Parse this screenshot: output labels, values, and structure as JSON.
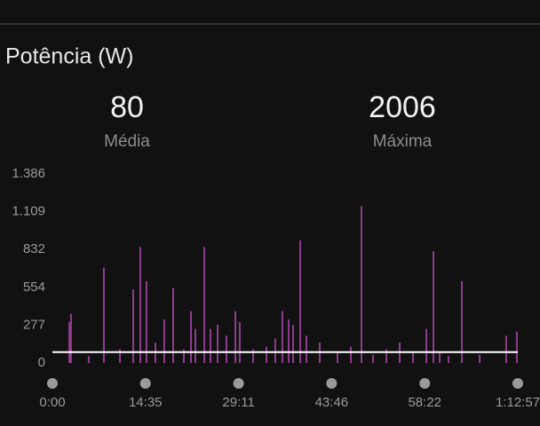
{
  "header": {
    "title": "Potência (W)"
  },
  "stats": [
    {
      "value": 80,
      "label": "Média"
    },
    {
      "value": 2006,
      "label": "Máxima"
    }
  ],
  "chart_data": {
    "type": "bar",
    "color": "#8e3c8e",
    "line_color": "#ffffff",
    "x": [
      159,
      175,
      342,
      484,
      635,
      760,
      827,
      885,
      969,
      1052,
      1136,
      1236,
      1303,
      1345,
      1429,
      1487,
      1554,
      1637,
      1721,
      1762,
      1888,
      2013,
      2096,
      2163,
      2222,
      2264,
      2331,
      2389,
      2514,
      2681,
      2807,
      2907,
      3016,
      3141,
      3266,
      3392,
      3517,
      3584,
      3642,
      3726,
      3851,
      4018,
      4268,
      4368
    ],
    "values": [
      300,
      360,
      50,
      700,
      100,
      540,
      850,
      600,
      150,
      320,
      550,
      100,
      380,
      250,
      850,
      250,
      280,
      200,
      380,
      300,
      100,
      120,
      180,
      380,
      320,
      280,
      900,
      200,
      150,
      80,
      120,
      1150,
      60,
      100,
      150,
      80,
      250,
      820,
      80,
      50,
      600,
      60,
      200,
      230
    ],
    "xlim": [
      0,
      4377
    ],
    "xticks": [
      {
        "value": 0,
        "label": "0:00"
      },
      {
        "value": 875,
        "label": "14:35"
      },
      {
        "value": 1751,
        "label": "29:11"
      },
      {
        "value": 2626,
        "label": "43:46"
      },
      {
        "value": 3502,
        "label": "58:22"
      },
      {
        "value": 4377,
        "label": "1:12:57"
      }
    ],
    "ylim": [
      0,
      1386
    ],
    "yticks": [
      {
        "value": 0,
        "label": "0"
      },
      {
        "value": 277,
        "label": "277"
      },
      {
        "value": 554,
        "label": "554"
      },
      {
        "value": 832,
        "label": "832"
      },
      {
        "value": 1109,
        "label": "1.109"
      },
      {
        "value": 1386,
        "label": "1.386"
      }
    ]
  }
}
